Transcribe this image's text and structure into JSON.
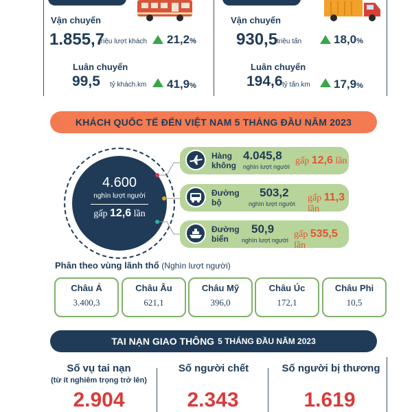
{
  "passenger": {
    "transport_label": "Vận chuyển",
    "transport_value": "1.855,7",
    "transport_unit": "triệu lượt khách",
    "transport_pct": "21,2",
    "rotation_label": "Luân chuyển",
    "rotation_value": "99,5",
    "rotation_unit": "tỷ khách.km",
    "rotation_pct": "41,9"
  },
  "cargo": {
    "transport_label": "Vận chuyển",
    "transport_value": "930,5",
    "transport_unit": "triệu tấn",
    "transport_pct": "18,0",
    "rotation_label": "Luân chuyển",
    "rotation_value": "194,6",
    "rotation_unit": "tỷ tấn.km",
    "rotation_pct": "17,9"
  },
  "percent_sign": "%",
  "visitors": {
    "banner": "KHÁCH QUỐC TẾ ĐẾN VIỆT NAM 5 THÁNG ĐẦU NĂM 2023",
    "total_value": "4.600",
    "total_unit": "nghìn lượt người",
    "total_gap_word": "gấp",
    "total_gap_value": "12,6",
    "total_gap_suffix": "lần",
    "modes": [
      {
        "line1": "Hàng",
        "line2": "không",
        "value": "4.045,8",
        "unit": "nghìn lượt người",
        "gap_word": "gấp",
        "gap_value": "12,6",
        "gap_suffix": "lần"
      },
      {
        "line1": "Đường",
        "line2": "bộ",
        "value": "503,2",
        "unit": "nghìn lượt người",
        "gap_word": "gấp",
        "gap_value": "11,3",
        "gap_suffix": "lần"
      },
      {
        "line1": "Đường",
        "line2": "biển",
        "value": "50,9",
        "unit": "nghìn lượt người",
        "gap_word": "gấp",
        "gap_value": "535,5",
        "gap_suffix": "lần"
      }
    ],
    "region_heading": "Phân theo vùng lãnh thổ",
    "region_heading_unit": "(Nghìn lượt người)",
    "regions": [
      {
        "name": "Châu Á",
        "value": "3.400,3"
      },
      {
        "name": "Châu Âu",
        "value": "621,1"
      },
      {
        "name": "Châu Mỹ",
        "value": "396,0"
      },
      {
        "name": "Châu Úc",
        "value": "172,1"
      },
      {
        "name": "Châu Phi",
        "value": "10,5"
      }
    ]
  },
  "accidents": {
    "banner_main": "TAI NẠN GIAO THÔNG",
    "banner_sub": "5 THÁNG ĐẦU NĂM 2023",
    "cases_title": "Số vụ tai nạn",
    "cases_note": "(từ ít nghiêm trọng trở lên)",
    "cases_value": "2.904",
    "deaths_title": "Số người chết",
    "deaths_value": "2.343",
    "injured_title": "Số người bị thương",
    "injured_value": "1.619"
  },
  "colors": {
    "navy": "#1f3b57",
    "orange_banner": "#f47a51",
    "green_pill": "#b7d49a",
    "up_arrow": "#3aa64a",
    "accent_red": "#d93b3b"
  }
}
